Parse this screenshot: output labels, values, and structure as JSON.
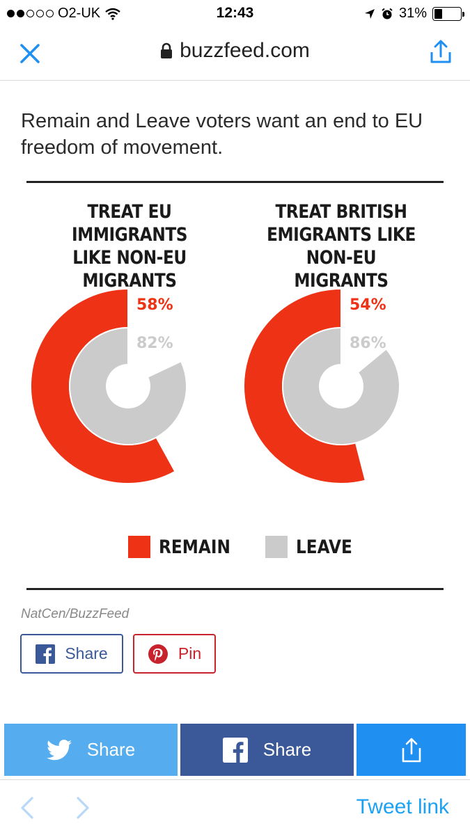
{
  "status_bar": {
    "carrier": "O2-UK",
    "time": "12:43",
    "battery": "31%",
    "battery_level": 0.31,
    "icons": [
      "signal-dots-icon",
      "wifi-icon",
      "location-arrow-icon",
      "alarm-icon",
      "battery-icon"
    ]
  },
  "nav": {
    "url": "buzzfeed.com",
    "icons": [
      "close-icon",
      "lock-icon",
      "share-icon"
    ]
  },
  "article": {
    "headline": "Remain and Leave voters want an end to EU freedom of movement.",
    "source": "NatCen/BuzzFeed",
    "share_label": "Share",
    "pin_label": "Pin"
  },
  "chart_data": [
    {
      "type": "radial-bar",
      "title": "TREAT EU IMMIGRANTS LIKE NON-EU MIGRANTS",
      "series": [
        {
          "name": "REMAIN",
          "value": 58,
          "label": "58%"
        },
        {
          "name": "LEAVE",
          "value": 82,
          "label": "82%"
        }
      ]
    },
    {
      "type": "radial-bar",
      "title": "TREAT BRITISH EMIGRANTS LIKE NON-EU MIGRANTS",
      "series": [
        {
          "name": "REMAIN",
          "value": 54,
          "label": "54%"
        },
        {
          "name": "LEAVE",
          "value": 86,
          "label": "86%"
        }
      ]
    }
  ],
  "legend": {
    "remain": "REMAIN",
    "leave": "LEAVE"
  },
  "colors": {
    "remain": "#ee3216",
    "leave": "#cbcbcb",
    "twitter": "#55acee",
    "facebook": "#3b5998",
    "ios_blue": "#1f8ff1",
    "pinterest": "#c8232c"
  },
  "share_bar": {
    "twitter_label": "Share",
    "facebook_label": "Share"
  },
  "toolbar": {
    "tweet_link": "Tweet link"
  }
}
